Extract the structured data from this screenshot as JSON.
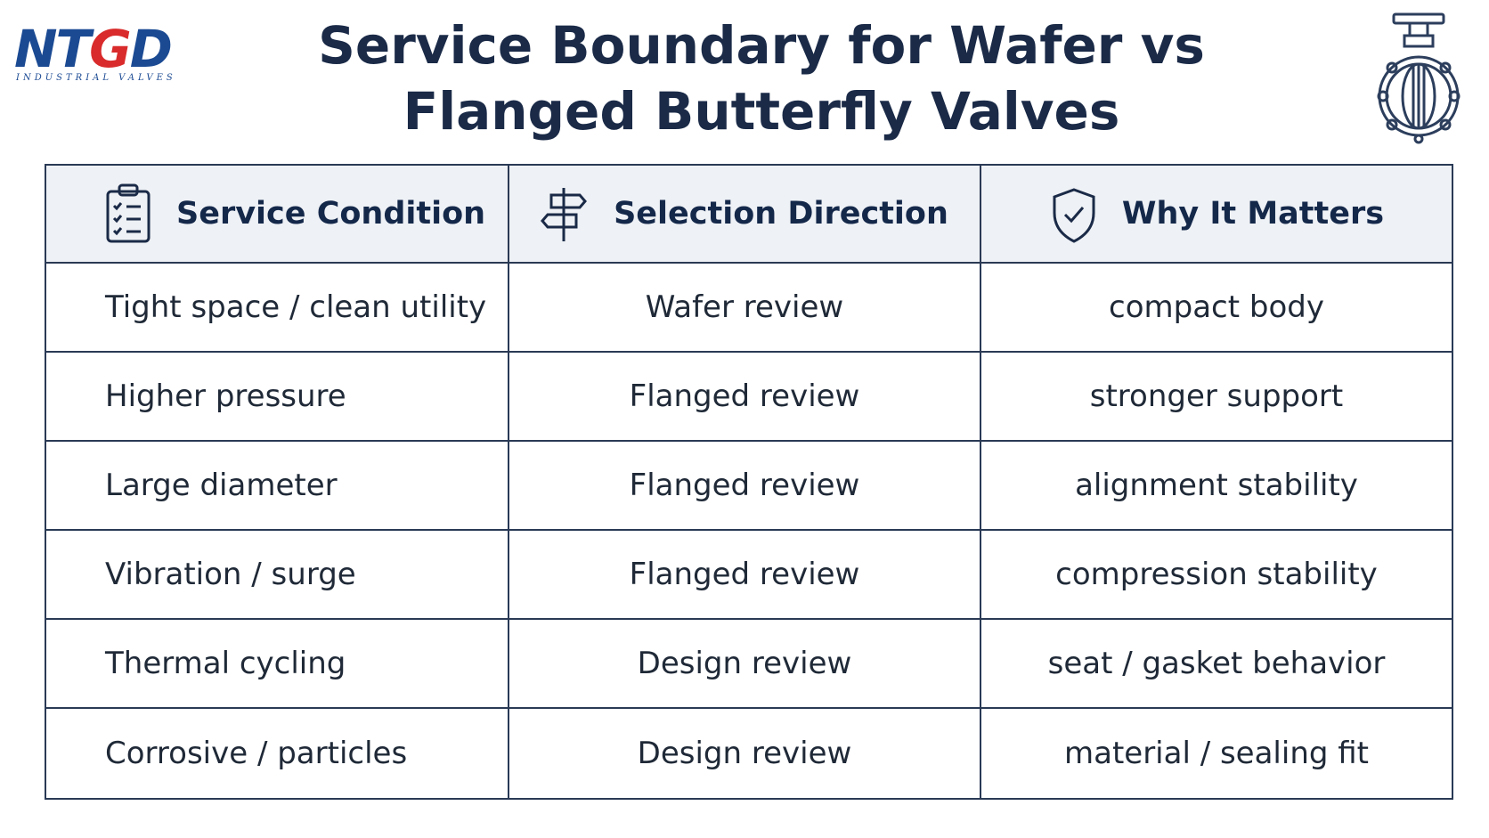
{
  "logo": {
    "mark_pre": "NT",
    "mark_t": "G",
    "mark_post": "D",
    "subtitle": "INDUSTRIAL VALVES"
  },
  "title": {
    "line1": "Service Boundary for Wafer vs",
    "line2": "Flanged Butterfly Valves"
  },
  "icons": {
    "header_right": "butterfly-valve-icon",
    "col1": "clipboard-checklist-icon",
    "col2": "signpost-icon",
    "col3": "shield-check-icon"
  },
  "colors": {
    "brand_blue": "#1b4a93",
    "brand_red": "#d92b2b",
    "header_bg": "#eef1f5",
    "border": "#2a3a55"
  },
  "table": {
    "headers": [
      "Service Condition",
      "Selection Direction",
      "Why It Matters"
    ],
    "rows": [
      [
        "Tight space / clean utility",
        "Wafer review",
        "compact body"
      ],
      [
        "Higher pressure",
        "Flanged review",
        "stronger support"
      ],
      [
        "Large diameter",
        "Flanged review",
        "alignment stability"
      ],
      [
        "Vibration / surge",
        "Flanged review",
        "compression stability"
      ],
      [
        "Thermal cycling",
        "Design review",
        "seat / gasket behavior"
      ],
      [
        "Corrosive / particles",
        "Design review",
        "material / sealing fit"
      ]
    ]
  }
}
